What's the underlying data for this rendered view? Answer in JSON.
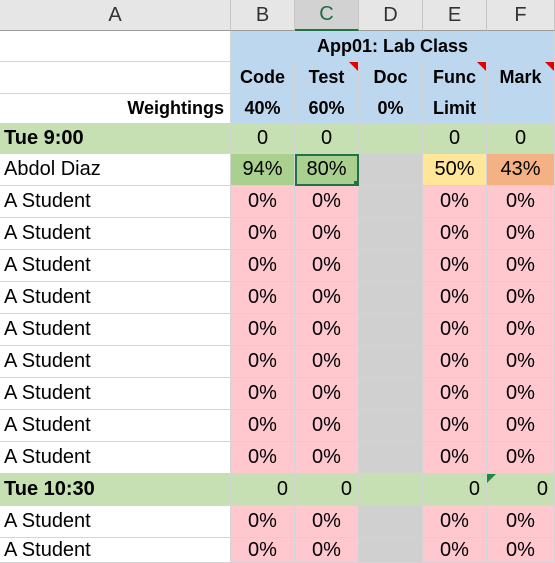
{
  "columns": [
    "A",
    "B",
    "C",
    "D",
    "E",
    "F"
  ],
  "title": "App01: Lab Class",
  "headers": [
    "Code",
    "Test",
    "Doc",
    "Func",
    "Mark"
  ],
  "weightings": {
    "label": "Weightings",
    "values": [
      "40%",
      "60%",
      "0%",
      "Limit",
      ""
    ]
  },
  "group1": {
    "label": "Tue 9:00",
    "values": [
      "0",
      "0",
      "",
      "0",
      "0"
    ]
  },
  "first_student": {
    "name": "Abdol Diaz",
    "values": [
      "94%",
      "80%",
      "",
      "50%",
      "43%"
    ]
  },
  "student_name": "A Student",
  "zero_pct": "0%",
  "group2": {
    "label": "Tue 10:30",
    "values": [
      "0",
      "0",
      "",
      "0",
      "0"
    ]
  },
  "colors": {
    "header_blue": "#bdd7ee",
    "group_green": "#c6e0b4",
    "fail_pink": "#ffc7ce",
    "doc_grey": "#d0d0d0"
  }
}
